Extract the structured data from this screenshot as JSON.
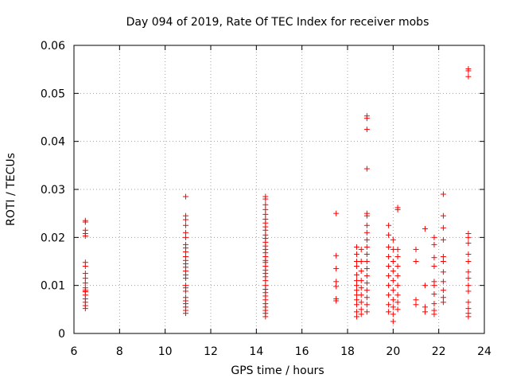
{
  "chart_data": {
    "type": "scatter",
    "title": "Day 094 of 2019, Rate Of TEC Index for receiver mobs",
    "xlabel": "GPS time / hours",
    "ylabel": "ROTI / TECUs",
    "xlim": [
      6,
      24
    ],
    "ylim": [
      0,
      0.06
    ],
    "x_ticks": [
      6,
      8,
      10,
      12,
      14,
      16,
      18,
      20,
      22,
      24
    ],
    "y_ticks": [
      0,
      0.01,
      0.02,
      0.03,
      0.04,
      0.05,
      0.06
    ],
    "x_tick_labels": [
      "6",
      "8",
      "10",
      "12",
      "14",
      "16",
      "18",
      "20",
      "22",
      "24"
    ],
    "y_tick_labels": [
      "0",
      "0.01",
      "0.02",
      "0.03",
      "0.04",
      "0.05",
      "0.06"
    ],
    "grid": true,
    "marker": "+",
    "marker_color": "#ff0000",
    "series": [
      {
        "name": "mobs",
        "points": [
          [
            6.5,
            0.0235
          ],
          [
            6.5,
            0.0232
          ],
          [
            6.5,
            0.0215
          ],
          [
            6.5,
            0.0208
          ],
          [
            6.5,
            0.0203
          ],
          [
            6.5,
            0.0148
          ],
          [
            6.5,
            0.014
          ],
          [
            6.5,
            0.0125
          ],
          [
            6.5,
            0.0115
          ],
          [
            6.5,
            0.0105
          ],
          [
            6.5,
            0.0095
          ],
          [
            6.5,
            0.009
          ],
          [
            6.5,
            0.0087
          ],
          [
            6.5,
            0.008
          ],
          [
            6.5,
            0.0072
          ],
          [
            6.5,
            0.0065
          ],
          [
            6.5,
            0.0058
          ],
          [
            6.5,
            0.0052
          ],
          [
            10.9,
            0.0285
          ],
          [
            10.9,
            0.0245
          ],
          [
            10.9,
            0.0237
          ],
          [
            10.9,
            0.0225
          ],
          [
            10.9,
            0.021
          ],
          [
            10.9,
            0.02
          ],
          [
            10.9,
            0.0185
          ],
          [
            10.9,
            0.0178
          ],
          [
            10.9,
            0.017
          ],
          [
            10.9,
            0.016
          ],
          [
            10.9,
            0.0152
          ],
          [
            10.9,
            0.0145
          ],
          [
            10.9,
            0.0138
          ],
          [
            10.9,
            0.013
          ],
          [
            10.9,
            0.0122
          ],
          [
            10.9,
            0.0115
          ],
          [
            10.9,
            0.01
          ],
          [
            10.9,
            0.0095
          ],
          [
            10.9,
            0.0088
          ],
          [
            10.9,
            0.0075
          ],
          [
            10.9,
            0.0068
          ],
          [
            10.9,
            0.0062
          ],
          [
            10.9,
            0.0055
          ],
          [
            10.9,
            0.0048
          ],
          [
            10.9,
            0.0042
          ],
          [
            14.4,
            0.0285
          ],
          [
            14.4,
            0.028
          ],
          [
            14.4,
            0.0268
          ],
          [
            14.4,
            0.0258
          ],
          [
            14.4,
            0.0248
          ],
          [
            14.4,
            0.0238
          ],
          [
            14.4,
            0.023
          ],
          [
            14.4,
            0.0222
          ],
          [
            14.4,
            0.0215
          ],
          [
            14.4,
            0.0205
          ],
          [
            14.4,
            0.0198
          ],
          [
            14.4,
            0.019
          ],
          [
            14.4,
            0.0182
          ],
          [
            14.4,
            0.0175
          ],
          [
            14.4,
            0.0168
          ],
          [
            14.4,
            0.016
          ],
          [
            14.4,
            0.0152
          ],
          [
            14.4,
            0.0148
          ],
          [
            14.4,
            0.014
          ],
          [
            14.4,
            0.0132
          ],
          [
            14.4,
            0.0125
          ],
          [
            14.4,
            0.0118
          ],
          [
            14.4,
            0.011
          ],
          [
            14.4,
            0.01
          ],
          [
            14.4,
            0.0092
          ],
          [
            14.4,
            0.0085
          ],
          [
            14.4,
            0.0078
          ],
          [
            14.4,
            0.007
          ],
          [
            14.4,
            0.0062
          ],
          [
            14.4,
            0.0055
          ],
          [
            14.4,
            0.0048
          ],
          [
            14.4,
            0.0042
          ],
          [
            14.4,
            0.0035
          ],
          [
            17.5,
            0.025
          ],
          [
            17.5,
            0.0162
          ],
          [
            17.5,
            0.0135
          ],
          [
            17.5,
            0.0108
          ],
          [
            17.5,
            0.0098
          ],
          [
            17.5,
            0.0072
          ],
          [
            17.5,
            0.0068
          ],
          [
            18.4,
            0.018
          ],
          [
            18.4,
            0.0165
          ],
          [
            18.4,
            0.015
          ],
          [
            18.4,
            0.014
          ],
          [
            18.4,
            0.0122
          ],
          [
            18.4,
            0.011
          ],
          [
            18.4,
            0.01
          ],
          [
            18.4,
            0.009
          ],
          [
            18.4,
            0.008
          ],
          [
            18.4,
            0.007
          ],
          [
            18.4,
            0.006
          ],
          [
            18.4,
            0.0045
          ],
          [
            18.4,
            0.0035
          ],
          [
            18.6,
            0.0175
          ],
          [
            18.6,
            0.015
          ],
          [
            18.6,
            0.013
          ],
          [
            18.6,
            0.011
          ],
          [
            18.6,
            0.0095
          ],
          [
            18.6,
            0.008
          ],
          [
            18.6,
            0.0065
          ],
          [
            18.6,
            0.005
          ],
          [
            18.6,
            0.004
          ],
          [
            18.85,
            0.0453
          ],
          [
            18.85,
            0.0448
          ],
          [
            18.85,
            0.0425
          ],
          [
            18.85,
            0.0343
          ],
          [
            18.85,
            0.025
          ],
          [
            18.85,
            0.0245
          ],
          [
            18.85,
            0.0225
          ],
          [
            18.85,
            0.021
          ],
          [
            18.85,
            0.0195
          ],
          [
            18.85,
            0.018
          ],
          [
            18.85,
            0.0165
          ],
          [
            18.85,
            0.015
          ],
          [
            18.85,
            0.0135
          ],
          [
            18.85,
            0.012
          ],
          [
            18.85,
            0.0105
          ],
          [
            18.85,
            0.009
          ],
          [
            18.85,
            0.0075
          ],
          [
            18.85,
            0.006
          ],
          [
            18.85,
            0.0045
          ],
          [
            19.8,
            0.0225
          ],
          [
            19.8,
            0.0205
          ],
          [
            19.8,
            0.018
          ],
          [
            19.8,
            0.016
          ],
          [
            19.8,
            0.014
          ],
          [
            19.8,
            0.012
          ],
          [
            19.8,
            0.01
          ],
          [
            19.8,
            0.008
          ],
          [
            19.8,
            0.006
          ],
          [
            19.8,
            0.0045
          ],
          [
            20.0,
            0.0195
          ],
          [
            20.0,
            0.0175
          ],
          [
            20.0,
            0.015
          ],
          [
            20.0,
            0.013
          ],
          [
            20.0,
            0.011
          ],
          [
            20.0,
            0.009
          ],
          [
            20.0,
            0.007
          ],
          [
            20.0,
            0.0055
          ],
          [
            20.0,
            0.004
          ],
          [
            20.0,
            0.0025
          ],
          [
            20.2,
            0.0262
          ],
          [
            20.2,
            0.0258
          ],
          [
            20.2,
            0.0175
          ],
          [
            20.2,
            0.016
          ],
          [
            20.2,
            0.014
          ],
          [
            20.2,
            0.012
          ],
          [
            20.2,
            0.01
          ],
          [
            20.2,
            0.008
          ],
          [
            20.2,
            0.0065
          ],
          [
            20.2,
            0.005
          ],
          [
            21.0,
            0.0175
          ],
          [
            21.0,
            0.015
          ],
          [
            21.0,
            0.007
          ],
          [
            21.0,
            0.006
          ],
          [
            21.4,
            0.0218
          ],
          [
            21.4,
            0.01
          ],
          [
            21.4,
            0.0055
          ],
          [
            21.4,
            0.0045
          ],
          [
            21.8,
            0.02
          ],
          [
            21.8,
            0.0185
          ],
          [
            21.8,
            0.0158
          ],
          [
            21.8,
            0.014
          ],
          [
            21.8,
            0.0108
          ],
          [
            21.8,
            0.01
          ],
          [
            21.8,
            0.0082
          ],
          [
            21.8,
            0.0062
          ],
          [
            21.8,
            0.0048
          ],
          [
            21.8,
            0.004
          ],
          [
            22.2,
            0.029
          ],
          [
            22.2,
            0.0245
          ],
          [
            22.2,
            0.022
          ],
          [
            22.2,
            0.0195
          ],
          [
            22.2,
            0.016
          ],
          [
            22.2,
            0.015
          ],
          [
            22.2,
            0.0128
          ],
          [
            22.2,
            0.0108
          ],
          [
            22.2,
            0.009
          ],
          [
            22.2,
            0.0075
          ],
          [
            22.2,
            0.0065
          ],
          [
            23.3,
            0.0551
          ],
          [
            23.3,
            0.0547
          ],
          [
            23.3,
            0.0535
          ],
          [
            23.3,
            0.0208
          ],
          [
            23.3,
            0.02
          ],
          [
            23.3,
            0.0188
          ],
          [
            23.3,
            0.0165
          ],
          [
            23.3,
            0.015
          ],
          [
            23.3,
            0.0128
          ],
          [
            23.3,
            0.0115
          ],
          [
            23.3,
            0.01
          ],
          [
            23.3,
            0.0088
          ],
          [
            23.3,
            0.0065
          ],
          [
            23.3,
            0.0052
          ],
          [
            23.3,
            0.0042
          ],
          [
            23.3,
            0.0035
          ]
        ]
      }
    ]
  }
}
